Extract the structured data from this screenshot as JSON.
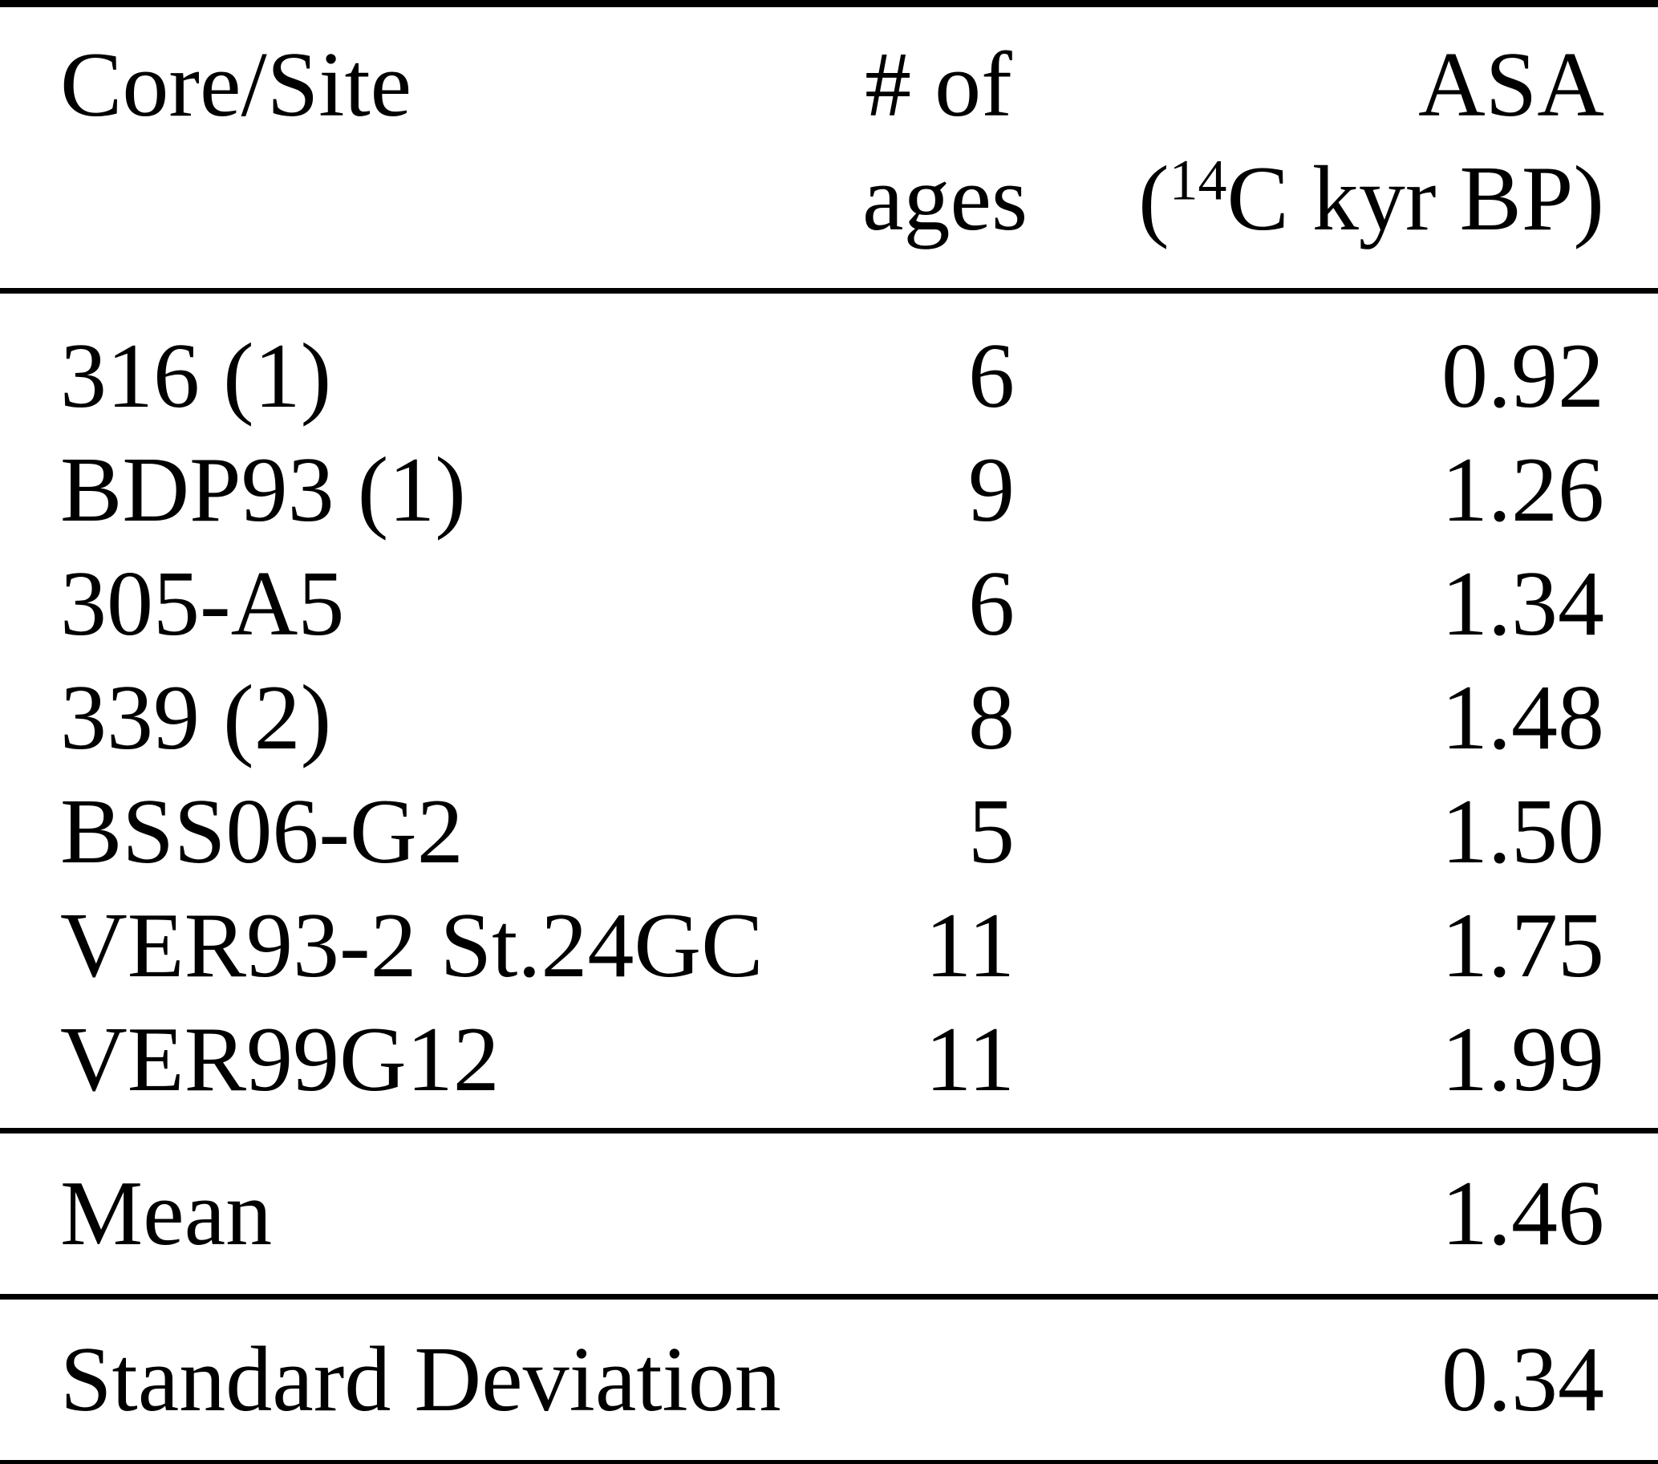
{
  "table": {
    "header": {
      "site": "Core/Site",
      "ages_line1": "# of",
      "ages_line2": "ages",
      "asa_line1": "ASA",
      "asa_unit_open_paren": "(",
      "asa_unit_superscript": "14",
      "asa_unit_text": "C kyr BP)"
    },
    "rows": [
      {
        "site": "316 (1)",
        "n_ages": "6",
        "asa": "0.92"
      },
      {
        "site": "BDP93 (1)",
        "n_ages": "9",
        "asa": "1.26"
      },
      {
        "site": "305-A5",
        "n_ages": "6",
        "asa": "1.34"
      },
      {
        "site": "339 (2)",
        "n_ages": "8",
        "asa": "1.48"
      },
      {
        "site": "BSS06-G2",
        "n_ages": "5",
        "asa": "1.50"
      },
      {
        "site": "VER93-2 St.24GC",
        "n_ages": "11",
        "asa": "1.75"
      },
      {
        "site": "VER99G12",
        "n_ages": "11",
        "asa": "1.99"
      }
    ],
    "summary": [
      {
        "label": "Mean",
        "value": "1.46"
      },
      {
        "label": "Standard Deviation",
        "value": "0.34"
      }
    ],
    "colors": {
      "text": "#000000",
      "background": "#ffffff",
      "rule": "#000000"
    }
  }
}
